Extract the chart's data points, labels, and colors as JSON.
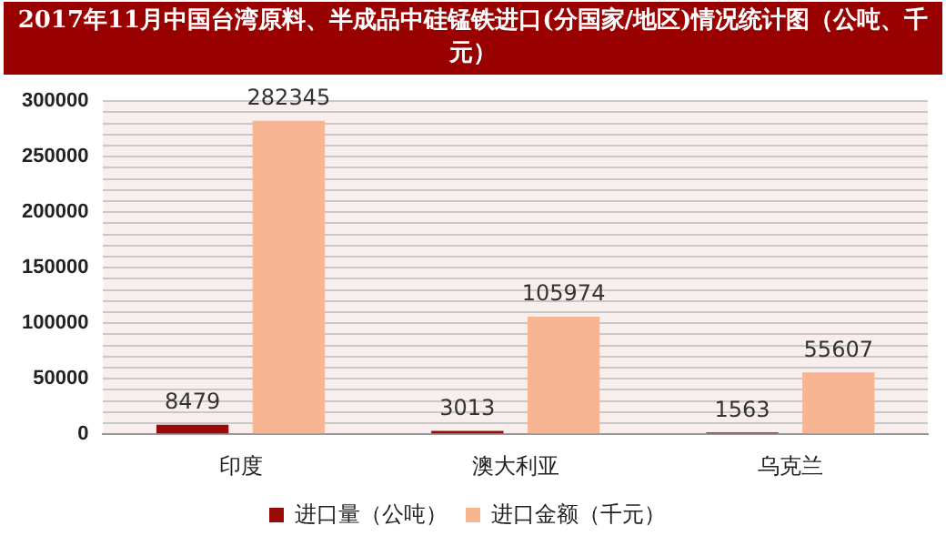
{
  "chart_data": {
    "type": "bar",
    "title": "2017年11月中国台湾原料、半成品中硅锰铁进口(分国家/地区)情况统计图（公吨、千元）",
    "categories": [
      "印度",
      "澳大利亚",
      "乌克兰"
    ],
    "series": [
      {
        "name": "进口量（公吨）",
        "color": "#9b0a0a",
        "values": [
          8479,
          3013,
          1563
        ]
      },
      {
        "name": "进口金额（千元）",
        "color": "#f8b592",
        "values": [
          282345,
          105974,
          55607
        ]
      }
    ],
    "ylim": [
      0,
      300000
    ],
    "yticks": [
      0,
      {
        "value": 10000,
        "label": null
      },
      {
        "value": 20000,
        "label": null
      },
      {
        "value": 30000,
        "label": null
      },
      {
        "value": 40000,
        "label": null
      },
      50000,
      {
        "value": 60000,
        "label": null
      },
      {
        "value": 70000,
        "label": null
      },
      {
        "value": 80000,
        "label": null
      },
      {
        "value": 90000,
        "label": null
      },
      100000,
      {
        "value": 110000,
        "label": null
      },
      {
        "value": 120000,
        "label": null
      },
      {
        "value": 130000,
        "label": null
      },
      {
        "value": 140000,
        "label": null
      },
      150000,
      {
        "value": 160000,
        "label": null
      },
      {
        "value": 170000,
        "label": null
      },
      {
        "value": 180000,
        "label": null
      },
      {
        "value": 190000,
        "label": null
      },
      200000,
      {
        "value": 210000,
        "label": null
      },
      {
        "value": 220000,
        "label": null
      },
      {
        "value": 230000,
        "label": null
      },
      {
        "value": 240000,
        "label": null
      },
      250000,
      {
        "value": 260000,
        "label": null
      },
      {
        "value": 270000,
        "label": null
      },
      {
        "value": 280000,
        "label": null
      },
      {
        "value": 290000,
        "label": null
      },
      300000
    ],
    "grid": "y",
    "legend": "bottom",
    "data_labels": true
  }
}
